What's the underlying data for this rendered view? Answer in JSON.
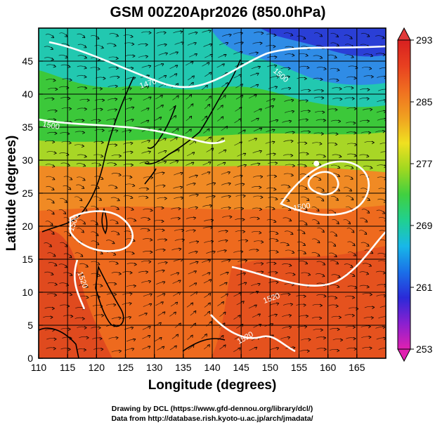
{
  "title": "GSM 00Z20Apr2026 (850.0hPa)",
  "map": {
    "xlabel": "Longitude (degrees)",
    "ylabel": "Latitude  (degrees)",
    "lon_range": [
      110,
      170
    ],
    "lat_range": [
      0,
      50
    ],
    "lon_ticks": [
      "110",
      "115",
      "120",
      "125",
      "130",
      "135",
      "140",
      "145",
      "150",
      "155",
      "160",
      "165"
    ],
    "lat_ticks": [
      "0",
      "5",
      "10",
      "15",
      "20",
      "25",
      "30",
      "35",
      "40",
      "45"
    ],
    "grid": true,
    "grid_spacing_deg": 5,
    "field": "temperature (shaded)",
    "overlays": [
      "streamlines",
      "geopotential height contours (white)"
    ],
    "contour_labels": [
      "1470",
      "1500",
      "1500",
      "1500",
      "1500",
      "1520",
      "1520",
      "1520"
    ],
    "high_center": {
      "lon": 158,
      "lat": 29.5
    }
  },
  "colorbar": {
    "min": 253,
    "max": 293,
    "ticks": [
      "293",
      "285",
      "277",
      "269",
      "261",
      "253"
    ],
    "colors": [
      "#e020b0",
      "#8a20d0",
      "#2a2ad8",
      "#1a70e8",
      "#18b8e8",
      "#20d090",
      "#40d040",
      "#a0d820",
      "#f0e020",
      "#f0a020",
      "#f07020",
      "#e84020",
      "#d82020"
    ]
  },
  "credits": {
    "line1": "Drawing by DCL (https://www.gfd-dennou.org/library/dcl/)",
    "line2": "Data from http://database.rish.kyoto-u.ac.jp/arch/jmadata/"
  }
}
